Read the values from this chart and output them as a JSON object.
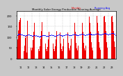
{
  "title": "Monthly Solar Energy Production Running Average",
  "bar_color": "#ee0000",
  "avg_color": "#0000ff",
  "bg_color": "#ffffff",
  "fig_bg": "#c8c8c8",
  "grid_color": "#aaaaaa",
  "legend_monthly_color": "#ee0000",
  "legend_avg_color": "#0000ff",
  "monthly_values": [
    55,
    90,
    130,
    170,
    180,
    190,
    185,
    160,
    120,
    70,
    45,
    35,
    60,
    95,
    110,
    30,
    175,
    185,
    190,
    165,
    125,
    75,
    50,
    40,
    50,
    85,
    125,
    165,
    175,
    0,
    185,
    160,
    120,
    70,
    45,
    35,
    58,
    92,
    128,
    170,
    178,
    188,
    192,
    163,
    122,
    72,
    46,
    36,
    56,
    90,
    126,
    168,
    178,
    188,
    190,
    162,
    122,
    72,
    46,
    36,
    57,
    91,
    127,
    169,
    178,
    188,
    191,
    162,
    122,
    72,
    46,
    36,
    59,
    93,
    129,
    171,
    179,
    189,
    193,
    164,
    123,
    73,
    47,
    37,
    60,
    94,
    130,
    172,
    180,
    190,
    194,
    165,
    124,
    74,
    48,
    38,
    61,
    95,
    131,
    173,
    181,
    191,
    195,
    166,
    125,
    75,
    49,
    39,
    62,
    96,
    132,
    174,
    182,
    192,
    196,
    167,
    126,
    76,
    50,
    40,
    63,
    97,
    133,
    175,
    183,
    193,
    197,
    168,
    127,
    77,
    51,
    41,
    64,
    98,
    134,
    176,
    184,
    194,
    198,
    169,
    128,
    78,
    52,
    42,
    65,
    99,
    135,
    177,
    185,
    195,
    199,
    170,
    129,
    79,
    53,
    15
  ],
  "running_avg": [
    110,
    112,
    114,
    116,
    115,
    114,
    113,
    112,
    111,
    110,
    109,
    108,
    107,
    108,
    109,
    108,
    110,
    111,
    112,
    111,
    110,
    109,
    108,
    107,
    106,
    107,
    108,
    109,
    110,
    105,
    108,
    107,
    106,
    105,
    104,
    103,
    104,
    105,
    106,
    107,
    108,
    109,
    110,
    109,
    108,
    107,
    106,
    105,
    105,
    106,
    107,
    108,
    109,
    110,
    111,
    110,
    109,
    108,
    107,
    106,
    106,
    107,
    108,
    109,
    110,
    111,
    112,
    111,
    110,
    109,
    108,
    107,
    107,
    108,
    109,
    110,
    111,
    112,
    113,
    112,
    111,
    110,
    109,
    108,
    108,
    109,
    110,
    111,
    112,
    113,
    114,
    113,
    112,
    111,
    110,
    109,
    109,
    110,
    111,
    112,
    113,
    114,
    115,
    114,
    113,
    112,
    111,
    110,
    110,
    111,
    112,
    113,
    114,
    115,
    116,
    115,
    114,
    113,
    112,
    111,
    111,
    112,
    113,
    114,
    115,
    116,
    117,
    116,
    115,
    114,
    113,
    112,
    112,
    113,
    114,
    115,
    116,
    117,
    118,
    117,
    116,
    115,
    114,
    113,
    113,
    114,
    115,
    116,
    117,
    118,
    119,
    118,
    117,
    116,
    115,
    110
  ],
  "years": [
    "11",
    "12",
    "13",
    "14",
    "15",
    "16",
    "17",
    "18",
    "19",
    "20",
    "21",
    "22",
    "23"
  ],
  "ylim": [
    0,
    220
  ],
  "yticks": [
    0,
    50,
    100,
    150,
    200
  ],
  "n_total": 156
}
